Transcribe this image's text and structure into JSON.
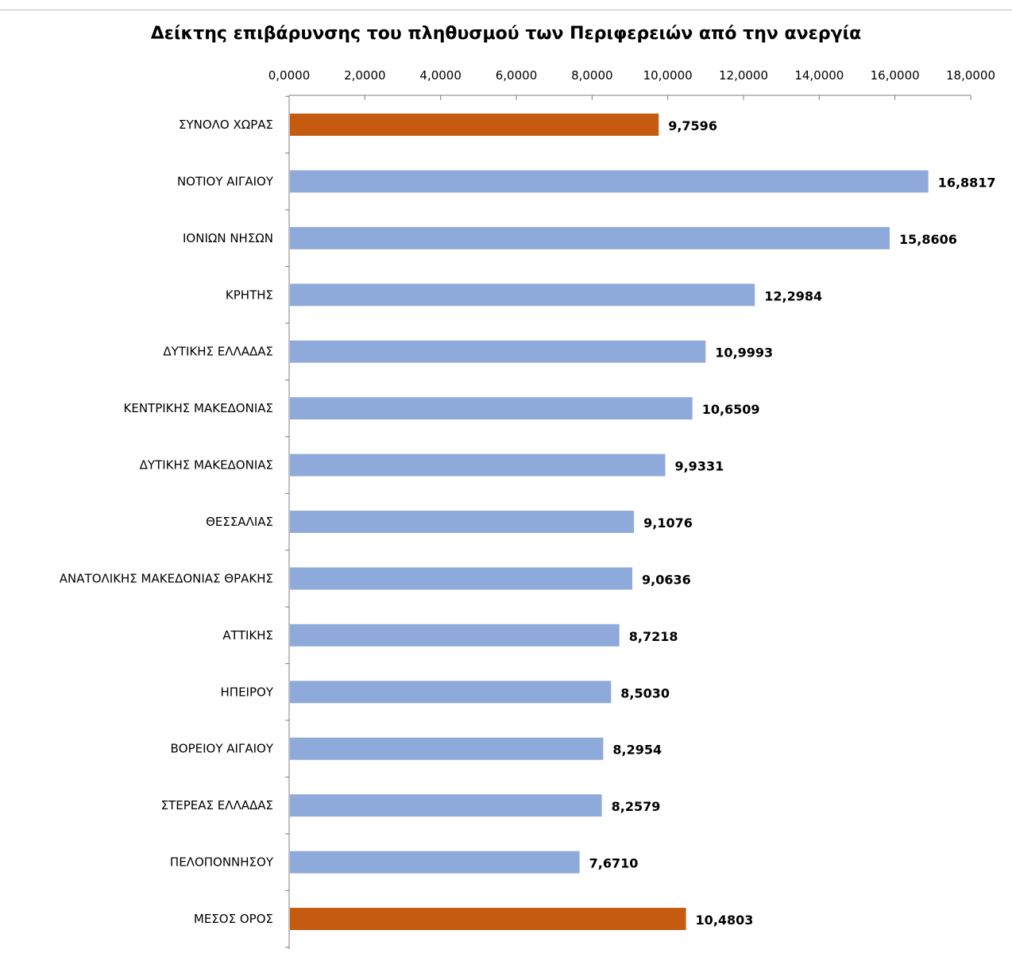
{
  "colors": {
    "regular_bar": "#8eaadb",
    "highlight_bar": "#c55a11",
    "axis": "#7f7f7f"
  },
  "chart_data": {
    "type": "bar",
    "orientation": "horizontal",
    "title": "Δείκτης επιβάρυνσης του πληθυσμού των Περιφερειών  από την ανεργία",
    "xlabel": "",
    "ylabel": "",
    "xlim": [
      0,
      18
    ],
    "x_axis_position": "top",
    "grid": false,
    "legend": "none",
    "ticks": [
      {
        "value": 0,
        "label": "0,0000"
      },
      {
        "value": 2,
        "label": "2,0000"
      },
      {
        "value": 4,
        "label": "4,0000"
      },
      {
        "value": 6,
        "label": "6,0000"
      },
      {
        "value": 8,
        "label": "8,0000"
      },
      {
        "value": 10,
        "label": "10,0000"
      },
      {
        "value": 12,
        "label": "12,0000"
      },
      {
        "value": 14,
        "label": "14,0000"
      },
      {
        "value": 16,
        "label": "16,0000"
      },
      {
        "value": 18,
        "label": "18,0000"
      }
    ],
    "bars": [
      {
        "category": "ΣΥΝΟΛΟ ΧΩΡΑΣ",
        "value": 9.7596,
        "label": "9,7596",
        "highlight": true
      },
      {
        "category": "ΝΟΤΙΟΥ ΑΙΓΑΙΟΥ",
        "value": 16.8817,
        "label": "16,8817",
        "highlight": false
      },
      {
        "category": "ΙΟΝΙΩΝ ΝΗΣΩΝ",
        "value": 15.8606,
        "label": "15,8606",
        "highlight": false
      },
      {
        "category": "ΚΡΗΤΗΣ",
        "value": 12.2984,
        "label": "12,2984",
        "highlight": false
      },
      {
        "category": "ΔΥΤΙΚΗΣ ΕΛΛΑΔΑΣ",
        "value": 10.9993,
        "label": "10,9993",
        "highlight": false
      },
      {
        "category": "ΚΕΝΤΡΙΚΗΣ ΜΑΚΕΔΟΝΙΑΣ",
        "value": 10.6509,
        "label": "10,6509",
        "highlight": false
      },
      {
        "category": "ΔΥΤΙΚΗΣ ΜΑΚΕΔΟΝΙΑΣ",
        "value": 9.9331,
        "label": "9,9331",
        "highlight": false
      },
      {
        "category": "ΘΕΣΣΑΛΙΑΣ",
        "value": 9.1076,
        "label": "9,1076",
        "highlight": false
      },
      {
        "category": "ΑΝΑΤΟΛΙΚΗΣ ΜΑΚΕΔΟΝΙΑΣ ΘΡΑΚΗΣ",
        "value": 9.0636,
        "label": "9,0636",
        "highlight": false
      },
      {
        "category": "ΑΤΤΙΚΗΣ",
        "value": 8.7218,
        "label": "8,7218",
        "highlight": false
      },
      {
        "category": "ΗΠΕΙΡΟΥ",
        "value": 8.503,
        "label": "8,5030",
        "highlight": false
      },
      {
        "category": "ΒΟΡΕΙΟΥ ΑΙΓΑΙΟΥ",
        "value": 8.2954,
        "label": "8,2954",
        "highlight": false
      },
      {
        "category": "ΣΤΕΡΕΑΣ ΕΛΛΑΔΑΣ",
        "value": 8.2579,
        "label": "8,2579",
        "highlight": false
      },
      {
        "category": "ΠΕΛΟΠΟΝΝΗΣΟΥ",
        "value": 7.671,
        "label": "7,6710",
        "highlight": false
      },
      {
        "category": "ΜΕΣΟΣ ΟΡΟΣ",
        "value": 10.4803,
        "label": "10,4803",
        "highlight": true
      }
    ]
  }
}
